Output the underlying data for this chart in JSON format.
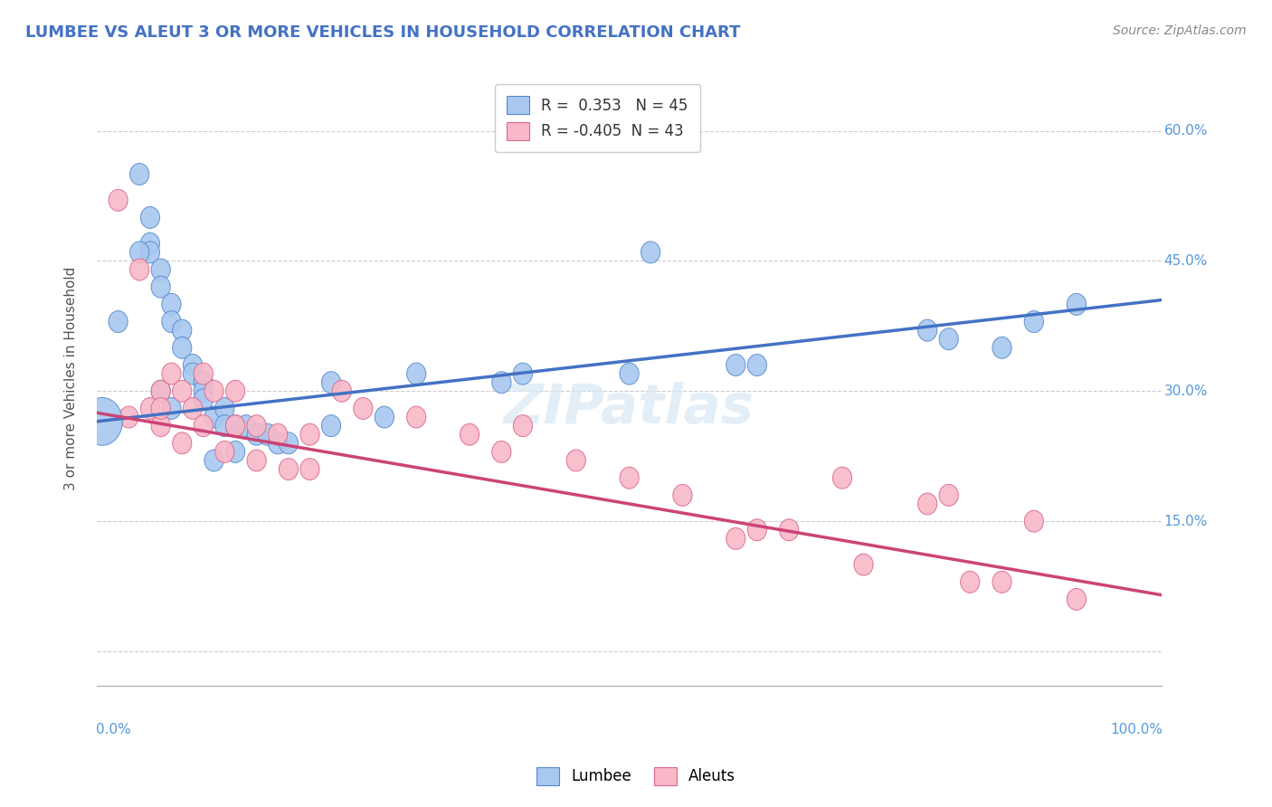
{
  "title": "LUMBEE VS ALEUT 3 OR MORE VEHICLES IN HOUSEHOLD CORRELATION CHART",
  "source": "Source: ZipAtlas.com",
  "ylabel": "3 or more Vehicles in Household",
  "yticks": [
    0.0,
    0.15,
    0.3,
    0.45,
    0.6
  ],
  "ytick_labels": [
    "",
    "15.0%",
    "30.0%",
    "45.0%",
    "60.0%"
  ],
  "xlim": [
    0.0,
    1.0
  ],
  "ylim": [
    -0.04,
    0.67
  ],
  "lumbee_R": 0.353,
  "lumbee_N": 45,
  "aleuts_R": -0.405,
  "aleuts_N": 43,
  "lumbee_color": "#A8C8F0",
  "aleuts_color": "#F8B8C8",
  "lumbee_edge_color": "#5588CC",
  "aleuts_edge_color": "#DD6688",
  "lumbee_line_color": "#4472C4",
  "aleuts_line_color": "#CC4477",
  "background_color": "#FFFFFF",
  "grid_color": "#CCCCCC",
  "lumbee_scatter_x": [
    0.02,
    0.04,
    0.05,
    0.05,
    0.05,
    0.06,
    0.06,
    0.07,
    0.07,
    0.08,
    0.08,
    0.09,
    0.09,
    0.1,
    0.1,
    0.1,
    0.11,
    0.12,
    0.12,
    0.13,
    0.14,
    0.15,
    0.16,
    0.17,
    0.18,
    0.22,
    0.22,
    0.27,
    0.3,
    0.38,
    0.4,
    0.5,
    0.52,
    0.6,
    0.62,
    0.78,
    0.8,
    0.85,
    0.88,
    0.92,
    0.04,
    0.06,
    0.07,
    0.11,
    0.13
  ],
  "lumbee_scatter_y": [
    0.38,
    0.55,
    0.5,
    0.47,
    0.46,
    0.44,
    0.42,
    0.4,
    0.38,
    0.37,
    0.35,
    0.33,
    0.32,
    0.31,
    0.3,
    0.29,
    0.27,
    0.28,
    0.26,
    0.26,
    0.26,
    0.25,
    0.25,
    0.24,
    0.24,
    0.26,
    0.31,
    0.27,
    0.32,
    0.31,
    0.32,
    0.32,
    0.46,
    0.33,
    0.33,
    0.37,
    0.36,
    0.35,
    0.38,
    0.4,
    0.46,
    0.3,
    0.28,
    0.22,
    0.23
  ],
  "aleuts_scatter_x": [
    0.02,
    0.03,
    0.04,
    0.05,
    0.06,
    0.06,
    0.07,
    0.08,
    0.09,
    0.1,
    0.11,
    0.13,
    0.13,
    0.15,
    0.17,
    0.2,
    0.23,
    0.25,
    0.3,
    0.35,
    0.38,
    0.4,
    0.45,
    0.5,
    0.55,
    0.6,
    0.62,
    0.65,
    0.7,
    0.72,
    0.78,
    0.8,
    0.82,
    0.85,
    0.88,
    0.92,
    0.06,
    0.08,
    0.1,
    0.12,
    0.15,
    0.18,
    0.2
  ],
  "aleuts_scatter_y": [
    0.52,
    0.27,
    0.44,
    0.28,
    0.3,
    0.26,
    0.32,
    0.3,
    0.28,
    0.32,
    0.3,
    0.3,
    0.26,
    0.26,
    0.25,
    0.25,
    0.3,
    0.28,
    0.27,
    0.25,
    0.23,
    0.26,
    0.22,
    0.2,
    0.18,
    0.13,
    0.14,
    0.14,
    0.2,
    0.1,
    0.17,
    0.18,
    0.08,
    0.08,
    0.15,
    0.06,
    0.28,
    0.24,
    0.26,
    0.23,
    0.22,
    0.21,
    0.21
  ],
  "lumbee_trend_x": [
    0.0,
    1.0
  ],
  "lumbee_trend_y": [
    0.265,
    0.405
  ],
  "aleuts_trend_x": [
    0.0,
    1.0
  ],
  "aleuts_trend_y": [
    0.275,
    0.065
  ]
}
